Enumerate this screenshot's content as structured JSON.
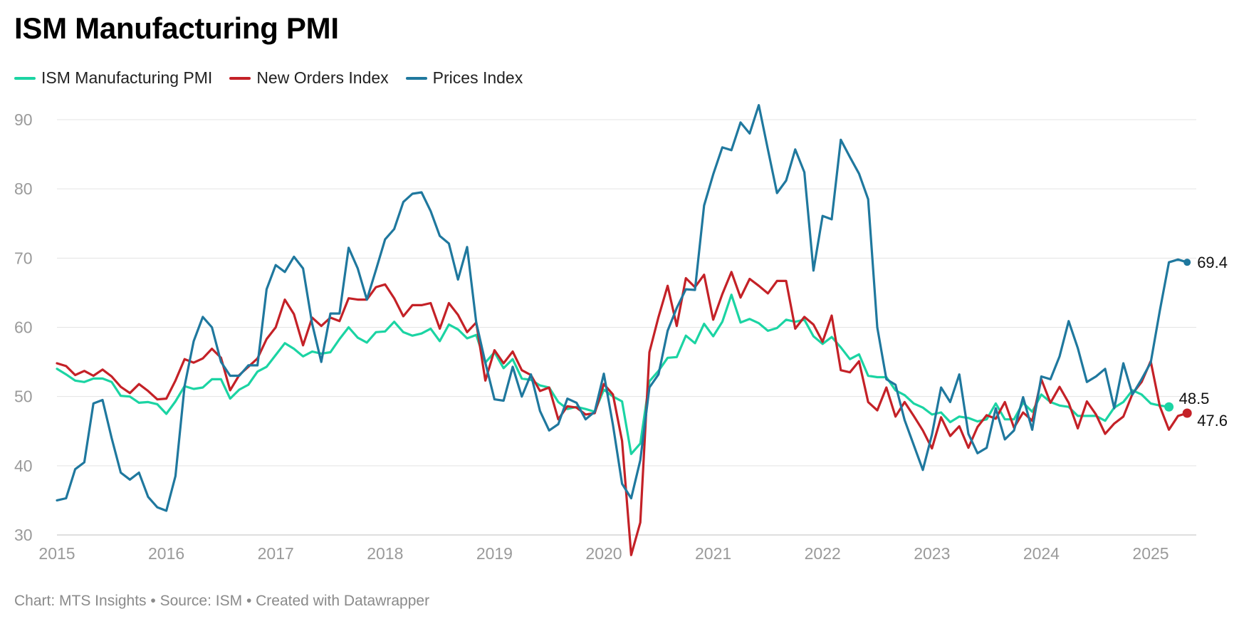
{
  "header": {
    "title": "ISM Manufacturing PMI"
  },
  "footer": {
    "text": "Chart: MTS Insights • Source: ISM • Created with Datawrapper"
  },
  "chart_data": {
    "type": "line",
    "title": "ISM Manufacturing PMI",
    "xlabel": "",
    "ylabel": "",
    "xlim": [
      2015.0,
      2025.33
    ],
    "ylim": [
      30,
      90
    ],
    "x_ticks": [
      "2015",
      "2016",
      "2017",
      "2018",
      "2019",
      "2020",
      "2021",
      "2022",
      "2023",
      "2024",
      "2025"
    ],
    "y_ticks": [
      30,
      40,
      50,
      60,
      70,
      80,
      90
    ],
    "grid": "horizontal",
    "legend_position": "top-left",
    "x_start": "2015-01",
    "x_frequency": "monthly",
    "series": [
      {
        "name": "ISM Manufacturing PMI",
        "color": "#1bd4a3",
        "end_label": "48.5",
        "values": [
          54.0,
          53.2,
          52.3,
          52.1,
          52.6,
          52.6,
          52.1,
          50.1,
          50.0,
          49.1,
          49.2,
          48.9,
          47.5,
          49.3,
          51.5,
          51.1,
          51.3,
          52.5,
          52.5,
          49.7,
          51.0,
          51.7,
          53.6,
          54.3,
          56.0,
          57.7,
          56.9,
          55.8,
          56.5,
          56.2,
          56.4,
          58.3,
          60.0,
          58.5,
          57.8,
          59.3,
          59.4,
          60.8,
          59.3,
          58.8,
          59.1,
          59.8,
          58.0,
          60.4,
          59.7,
          58.4,
          58.9,
          54.9,
          56.4,
          54.1,
          55.4,
          52.6,
          52.4,
          51.6,
          51.3,
          49.2,
          48.2,
          48.5,
          48.2,
          47.8,
          51.0,
          50.0,
          49.3,
          41.7,
          43.2,
          52.2,
          53.7,
          55.6,
          55.7,
          58.8,
          57.7,
          60.5,
          58.7,
          60.8,
          64.7,
          60.7,
          61.2,
          60.6,
          59.5,
          59.9,
          61.1,
          60.8,
          61.1,
          58.7,
          57.6,
          58.6,
          57.1,
          55.4,
          56.1,
          53.0,
          52.8,
          52.8,
          50.9,
          50.2,
          49.0,
          48.4,
          47.4,
          47.7,
          46.3,
          47.1,
          46.9,
          46.4,
          46.7,
          49.0,
          46.7,
          46.7,
          49.1,
          47.8,
          50.3,
          49.2,
          48.7,
          48.5,
          47.2,
          47.2,
          47.2,
          46.5,
          48.4,
          49.2,
          50.9,
          50.3,
          49.0,
          48.7,
          48.5
        ]
      },
      {
        "name": "New Orders Index",
        "color": "#c42127",
        "end_label": "47.6",
        "values": [
          54.8,
          54.4,
          53.1,
          53.7,
          53.0,
          53.9,
          52.9,
          51.4,
          50.5,
          51.8,
          50.8,
          49.6,
          49.7,
          52.3,
          55.4,
          54.9,
          55.5,
          56.9,
          55.6,
          50.9,
          53.1,
          54.3,
          55.5,
          58.3,
          60.0,
          64.0,
          61.9,
          57.4,
          61.4,
          60.2,
          61.4,
          60.9,
          64.2,
          64.0,
          64.0,
          65.8,
          66.2,
          64.2,
          61.6,
          63.2,
          63.2,
          63.5,
          59.8,
          63.5,
          61.8,
          59.3,
          60.7,
          52.3,
          56.7,
          54.8,
          56.5,
          53.8,
          53.1,
          50.8,
          51.3,
          46.7,
          48.6,
          48.4,
          47.4,
          47.6,
          51.8,
          50.3,
          43.6,
          27.1,
          31.8,
          56.4,
          61.5,
          66.0,
          60.2,
          67.1,
          65.8,
          67.6,
          61.1,
          64.8,
          68.0,
          64.3,
          67.0,
          66.0,
          64.9,
          66.7,
          66.7,
          59.8,
          61.5,
          60.4,
          57.9,
          61.7,
          53.8,
          53.5,
          55.1,
          49.2,
          48.0,
          51.3,
          47.1,
          49.2,
          47.2,
          45.1,
          42.5,
          47.0,
          44.3,
          45.7,
          42.6,
          45.6,
          47.3,
          46.8,
          49.2,
          45.5,
          47.7,
          46.5,
          52.5,
          49.1,
          51.4,
          49.1,
          45.4,
          49.3,
          47.4,
          44.6,
          46.1,
          47.1,
          50.4,
          52.1,
          55.1,
          48.6,
          45.2,
          47.2,
          47.6
        ]
      },
      {
        "name": "Prices Index",
        "color": "#1f789e",
        "end_label": "69.4",
        "values": [
          35.0,
          35.3,
          39.5,
          40.5,
          49.0,
          49.5,
          44.0,
          39.0,
          38.0,
          39.0,
          35.5,
          34.0,
          33.5,
          38.5,
          51.5,
          58.0,
          61.5,
          60.0,
          55.0,
          53.0,
          53.0,
          54.5,
          54.5,
          65.5,
          69.0,
          68.0,
          70.2,
          68.5,
          60.5,
          55.0,
          62.0,
          62.0,
          71.5,
          68.5,
          64.0,
          68.3,
          72.7,
          74.2,
          78.1,
          79.3,
          79.5,
          76.8,
          73.2,
          72.1,
          66.9,
          71.6,
          60.7,
          54.9,
          49.6,
          49.4,
          54.3,
          50.0,
          53.2,
          47.9,
          45.1,
          46.0,
          49.7,
          49.1,
          46.7,
          47.8,
          53.3,
          45.9,
          37.4,
          35.3,
          40.8,
          51.3,
          53.2,
          59.5,
          62.8,
          65.5,
          65.4,
          77.6,
          82.1,
          86.0,
          85.6,
          89.6,
          88.0,
          92.1,
          85.7,
          79.4,
          81.2,
          85.7,
          82.4,
          68.2,
          76.1,
          75.6,
          87.1,
          84.6,
          82.2,
          78.5,
          60.0,
          52.5,
          51.7,
          46.6,
          43.0,
          39.4,
          44.5,
          51.3,
          49.2,
          53.2,
          44.6,
          41.8,
          42.6,
          48.3,
          43.8,
          45.1,
          49.9,
          45.2,
          52.9,
          52.5,
          55.8,
          60.9,
          57.0,
          52.1,
          52.9,
          54.0,
          48.3,
          54.8,
          50.3,
          52.5,
          54.9,
          62.4,
          69.4,
          69.8,
          69.4
        ]
      }
    ]
  }
}
